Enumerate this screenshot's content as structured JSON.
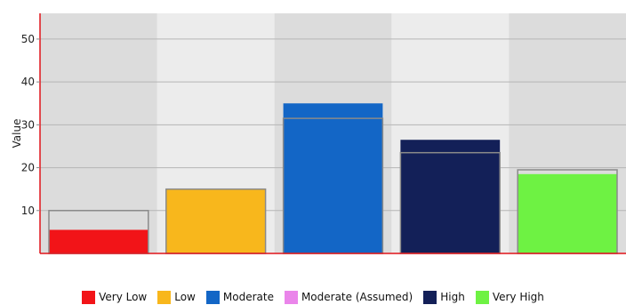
{
  "chart_data": {
    "type": "bar",
    "title": "",
    "xlabel": "",
    "ylabel": "Value",
    "ylim": [
      0,
      56
    ],
    "yticks": [
      10,
      20,
      30,
      40,
      50
    ],
    "grid": true,
    "legend_position": "bottom",
    "categories": [
      "Very Low",
      "Low",
      "Moderate",
      "High",
      "Very High"
    ],
    "series": [
      {
        "name": "Very Low",
        "color": "#f21418",
        "values": [
          5.5,
          0,
          0,
          0,
          0
        ],
        "reference_values": [
          10.0,
          0,
          0,
          0,
          0
        ]
      },
      {
        "name": "Low",
        "color": "#f8b71c",
        "values": [
          0,
          15.0,
          0,
          0,
          0
        ],
        "reference_values": [
          0,
          15.0,
          0,
          0,
          0
        ]
      },
      {
        "name": "Moderate",
        "color": "#1366c6",
        "values": [
          0,
          0,
          35.0,
          0,
          0
        ],
        "reference_values": [
          0,
          0,
          31.5,
          0,
          0
        ]
      },
      {
        "name": "Moderate (Assumed)",
        "color": "#ea85ea",
        "values": [
          0,
          0,
          0,
          0,
          0
        ],
        "reference_values": [
          0,
          0,
          0,
          0,
          0
        ]
      },
      {
        "name": "High",
        "color": "#132058",
        "values": [
          0,
          0,
          0,
          26.5,
          0
        ],
        "reference_values": [
          0,
          0,
          0,
          23.5,
          0
        ]
      },
      {
        "name": "Very High",
        "color": "#6ef243",
        "values": [
          0,
          0,
          0,
          0,
          18.5
        ],
        "reference_values": [
          0,
          0,
          0,
          0,
          19.5
        ]
      }
    ]
  }
}
